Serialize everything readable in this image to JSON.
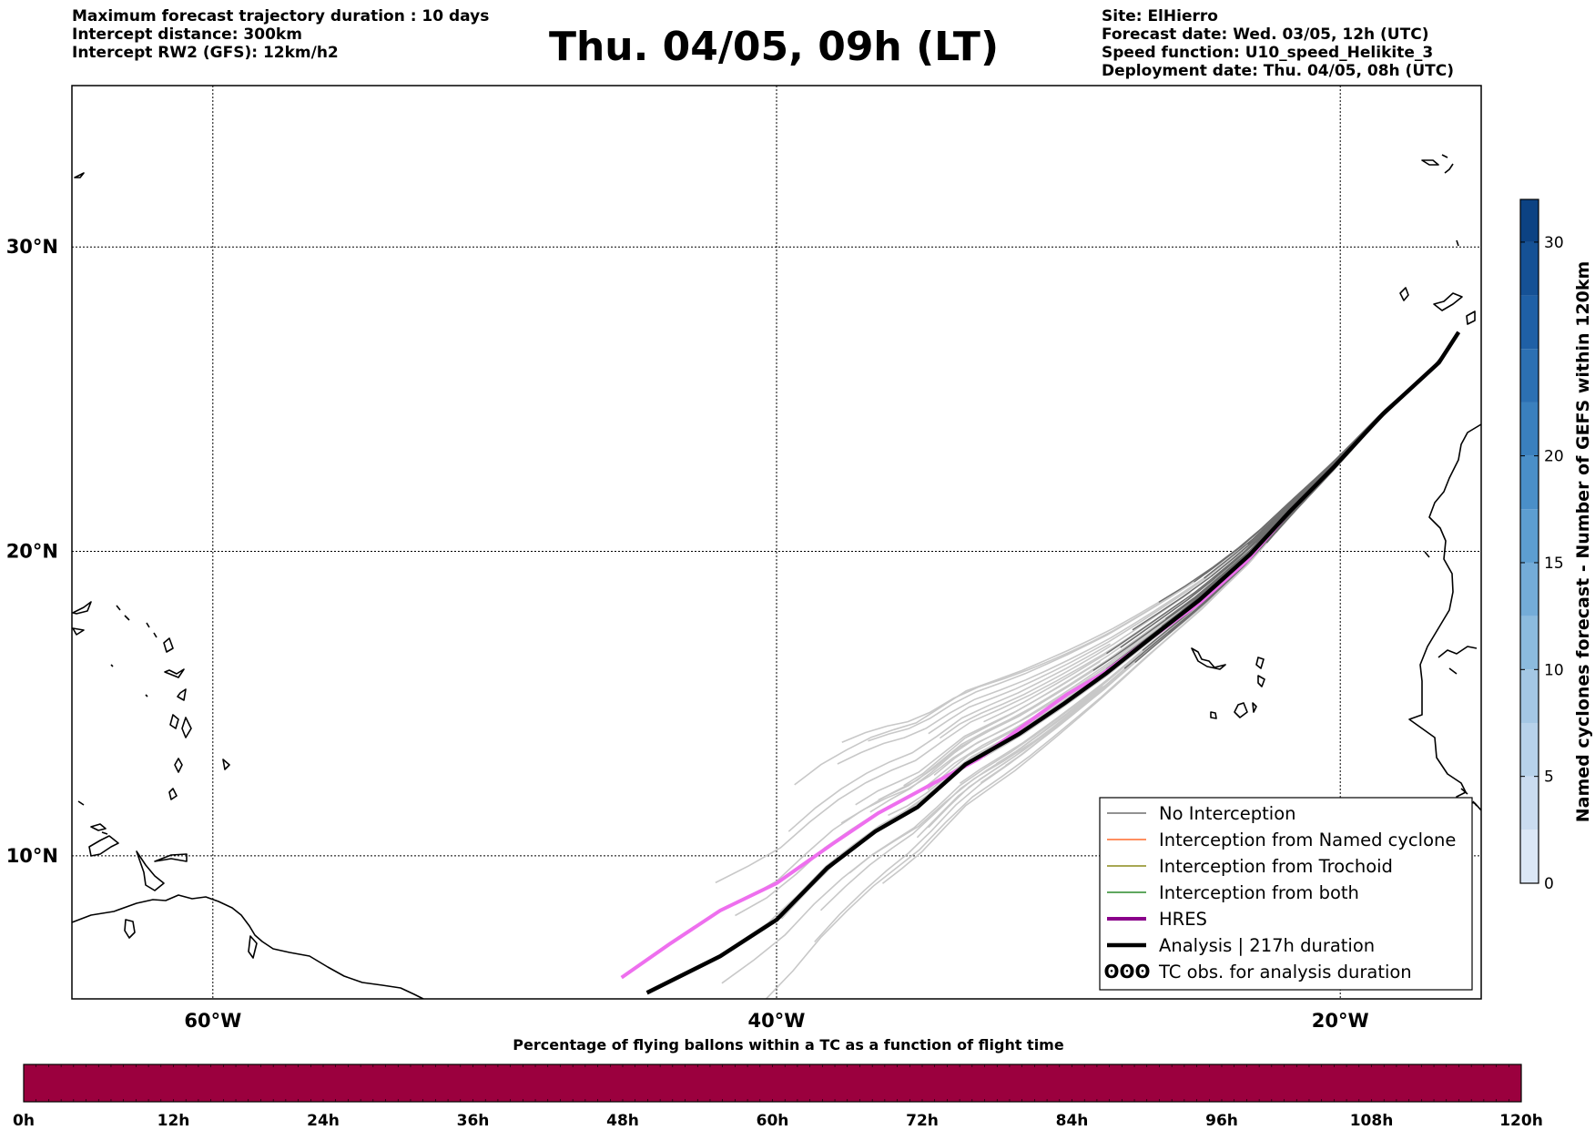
{
  "header": {
    "left_lines": [
      "Maximum forecast trajectory duration : 10 days",
      "Intercept distance: 300km",
      "Intercept RW2 (GFS):  12km/h2"
    ],
    "title": "Thu. 04/05, 09h (LT)",
    "right_lines": [
      "Site: ElHierro",
      "Forecast date: Wed. 03/05, 12h (UTC)",
      "Speed function: U10_speed_Helikite_3",
      "Deployment date: Thu. 04/05, 08h (UTC)"
    ]
  },
  "map": {
    "lon_range": [
      -65,
      -15
    ],
    "lat_range": [
      5.3,
      35.3
    ],
    "lat_ticks": [
      {
        "value": 30,
        "label": "30°N"
      },
      {
        "value": 20,
        "label": "20°N"
      },
      {
        "value": 10,
        "label": "10°N"
      }
    ],
    "lon_ticks": [
      {
        "value": -60,
        "label": "60°W"
      },
      {
        "value": -40,
        "label": "40°W"
      },
      {
        "value": -20,
        "label": "20°W"
      }
    ],
    "grid": true,
    "colors": {
      "no_interception_dark": "#6e6e6e",
      "no_interception_light": "#c8c8c8",
      "named_cyclone": "#ff6a2c",
      "trochoid": "#8a8a1a",
      "both": "#2a8a2a",
      "hres_legend": "#8a008a",
      "hres_track": "#ee6fee",
      "analysis": "#000000"
    },
    "legend": {
      "position": "bottom-right",
      "items": [
        {
          "key": "no_interception",
          "label": "No Interception"
        },
        {
          "key": "named_cyclone",
          "label": "Interception from Named cyclone"
        },
        {
          "key": "trochoid",
          "label": "Interception from Trochoid"
        },
        {
          "key": "both",
          "label": "Interception from both"
        },
        {
          "key": "hres",
          "label": "HRES"
        },
        {
          "key": "analysis",
          "label": "Analysis | 217h duration"
        },
        {
          "key": "tc_obs",
          "label": "TC obs. for analysis duration",
          "symbol": "ʘʘʘ"
        }
      ]
    },
    "hres_track": [
      [
        -15.8,
        27.2
      ],
      [
        -16.5,
        26.2
      ],
      [
        -18.5,
        24.5
      ],
      [
        -20.2,
        22.8
      ],
      [
        -21.8,
        21.3
      ],
      [
        -23.3,
        19.7
      ],
      [
        -25.0,
        18.3
      ],
      [
        -26.8,
        17.1
      ],
      [
        -28.4,
        16.0
      ],
      [
        -29.7,
        15.3
      ],
      [
        -31.2,
        14.3
      ],
      [
        -32.8,
        13.2
      ],
      [
        -34.6,
        12.3
      ],
      [
        -36.4,
        11.4
      ],
      [
        -38.0,
        10.4
      ],
      [
        -40.0,
        9.1
      ],
      [
        -42.0,
        8.2
      ],
      [
        -43.8,
        7.1
      ],
      [
        -45.5,
        6.0
      ]
    ],
    "analysis_track": [
      [
        -15.8,
        27.2
      ],
      [
        -16.5,
        26.2
      ],
      [
        -18.5,
        24.5
      ],
      [
        -20.2,
        22.8
      ],
      [
        -21.8,
        21.3
      ],
      [
        -23.2,
        19.9
      ],
      [
        -25.0,
        18.4
      ],
      [
        -26.8,
        17.1
      ],
      [
        -28.3,
        16.0
      ],
      [
        -29.8,
        15.0
      ],
      [
        -31.4,
        14.0
      ],
      [
        -33.3,
        13.0
      ],
      [
        -35.0,
        11.6
      ],
      [
        -36.5,
        10.8
      ],
      [
        -38.2,
        9.6
      ],
      [
        -40.0,
        7.9
      ],
      [
        -42.0,
        6.7
      ],
      [
        -44.6,
        5.5
      ]
    ]
  },
  "colorbar_vertical": {
    "label": "Named cyclones forecast - Number of GEFS within 120km",
    "range": [
      0,
      32
    ],
    "ticks": [
      0,
      5,
      10,
      15,
      20,
      30
    ],
    "bands": [
      {
        "from": 0,
        "to": 2.5,
        "color": "#dbe7f5"
      },
      {
        "from": 2.5,
        "to": 5,
        "color": "#cadcf0"
      },
      {
        "from": 5,
        "to": 7.5,
        "color": "#b7d2ea"
      },
      {
        "from": 7.5,
        "to": 10,
        "color": "#a4c7e4"
      },
      {
        "from": 10,
        "to": 12.5,
        "color": "#8cbbde"
      },
      {
        "from": 12.5,
        "to": 15,
        "color": "#74acd8"
      },
      {
        "from": 15,
        "to": 17.5,
        "color": "#5d9ed1"
      },
      {
        "from": 17.5,
        "to": 20,
        "color": "#4a8fc8"
      },
      {
        "from": 20,
        "to": 22.5,
        "color": "#3a80be"
      },
      {
        "from": 22.5,
        "to": 25,
        "color": "#2c70b3"
      },
      {
        "from": 25,
        "to": 27.5,
        "color": "#1f60a6"
      },
      {
        "from": 27.5,
        "to": 30,
        "color": "#155195"
      },
      {
        "from": 30,
        "to": 32,
        "color": "#0c4283"
      }
    ]
  },
  "colorbar_horizontal": {
    "title": "Percentage of flying ballons within a TC as a function of flight time",
    "fill_color": "#9b003e",
    "ticks": [
      "0h",
      "12h",
      "24h",
      "36h",
      "48h",
      "60h",
      "72h",
      "84h",
      "96h",
      "108h",
      "120h"
    ]
  }
}
